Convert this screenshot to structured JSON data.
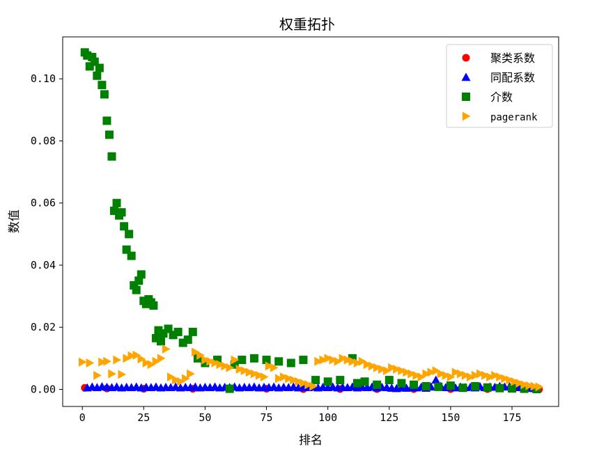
{
  "colors": {
    "clustering": "#ff0000",
    "assortativity": "#0000ff",
    "betweenness": "#008000",
    "pagerank": "#ffa500"
  },
  "chart_data": {
    "type": "scatter",
    "title": "权重拓扑",
    "xlabel": "排名",
    "ylabel": "数值",
    "xlim": [
      -8,
      194
    ],
    "ylim": [
      -0.0055,
      0.1135
    ],
    "xticks": [
      0,
      25,
      50,
      75,
      100,
      125,
      150,
      175
    ],
    "yticks": [
      0.0,
      0.02,
      0.04,
      0.06,
      0.08,
      0.1
    ],
    "ytick_labels": [
      "0.00",
      "0.02",
      "0.04",
      "0.06",
      "0.08",
      "0.10"
    ],
    "grid": false,
    "legend_position": "top-right",
    "series": [
      {
        "name": "聚类系数",
        "marker": "circle",
        "color_key": "clustering",
        "x": [
          1,
          10,
          25,
          45,
          60,
          75,
          90,
          105,
          120,
          135,
          150,
          165,
          180,
          186
        ],
        "y": [
          0.0005,
          0.0003,
          0.0002,
          0.0002,
          0.0002,
          0.0002,
          0.0001,
          0.0001,
          0.0001,
          0.0001,
          0.0001,
          0.0001,
          0.0001,
          0.0
        ]
      },
      {
        "name": "同配系数",
        "marker": "triangle",
        "color_key": "assortativity",
        "x": [
          2,
          4,
          6,
          8,
          10,
          12,
          14,
          16,
          18,
          20,
          22,
          24,
          26,
          28,
          30,
          32,
          34,
          36,
          38,
          40,
          42,
          44,
          46,
          48,
          50,
          52,
          54,
          56,
          58,
          60,
          62,
          64,
          66,
          68,
          70,
          72,
          74,
          76,
          78,
          80,
          82,
          84,
          86,
          88,
          90,
          92,
          94,
          96,
          98,
          100,
          102,
          104,
          106,
          108,
          110,
          112,
          114,
          116,
          118,
          120,
          122,
          124,
          126,
          128,
          130,
          132,
          134,
          136,
          138,
          140,
          142,
          144,
          146,
          148,
          150,
          152,
          154,
          156,
          158,
          160,
          162,
          164,
          166,
          168,
          170,
          172,
          174,
          176,
          178,
          180,
          182,
          184
        ],
        "y": [
          0.0005,
          0.0008,
          0.0006,
          0.0009,
          0.0007,
          0.0006,
          0.0008,
          0.0005,
          0.0007,
          0.0006,
          0.0008,
          0.0005,
          0.0007,
          0.0006,
          0.0008,
          0.0005,
          0.0007,
          0.0006,
          0.0008,
          0.0005,
          0.0007,
          0.0006,
          0.0008,
          0.0005,
          0.0007,
          0.0006,
          0.0008,
          0.0005,
          0.0007,
          0.0006,
          0.0008,
          0.0005,
          0.0007,
          0.0006,
          0.0008,
          0.0005,
          0.0007,
          0.0006,
          0.0008,
          0.0005,
          0.0007,
          0.0006,
          0.0008,
          0.0005,
          0.0007,
          0.0006,
          0.0008,
          0.0005,
          0.0007,
          0.0006,
          0.0008,
          0.0005,
          0.0007,
          0.0006,
          0.0008,
          0.0005,
          0.0007,
          0.0006,
          0.0008,
          0.0005,
          0.0007,
          0.0006,
          0.0004,
          0.0003,
          0.0005,
          0.0004,
          0.0006,
          0.0005,
          0.0007,
          0.0004,
          0.0008,
          0.003,
          0.001,
          0.0006,
          0.0009,
          0.0005,
          0.0008,
          0.0006,
          0.0007,
          0.0005,
          0.0009,
          0.0006,
          0.0008,
          0.0007,
          0.001,
          0.0008,
          0.0009,
          0.0007,
          0.0006,
          0.0005,
          0.0004,
          0.0003
        ]
      },
      {
        "name": "介数",
        "marker": "square",
        "color_key": "betweenness",
        "x": [
          1,
          2,
          3,
          4,
          5,
          6,
          7,
          8,
          9,
          10,
          11,
          12,
          13,
          14,
          15,
          16,
          17,
          18,
          19,
          20,
          21,
          22,
          23,
          24,
          25,
          26,
          27,
          28,
          29,
          30,
          31,
          32,
          33,
          35,
          37,
          39,
          41,
          43,
          45,
          47,
          50,
          55,
          60,
          62,
          65,
          70,
          75,
          80,
          85,
          90,
          95,
          100,
          105,
          110,
          112,
          115,
          120,
          125,
          130,
          135,
          140,
          145,
          150,
          155,
          160,
          165,
          170,
          175,
          180,
          185
        ],
        "y": [
          0.1085,
          0.1075,
          0.104,
          0.107,
          0.1055,
          0.101,
          0.1035,
          0.098,
          0.095,
          0.0865,
          0.082,
          0.075,
          0.0575,
          0.06,
          0.056,
          0.057,
          0.0525,
          0.045,
          0.05,
          0.043,
          0.0335,
          0.032,
          0.035,
          0.037,
          0.0285,
          0.0275,
          0.029,
          0.028,
          0.027,
          0.0165,
          0.019,
          0.0155,
          0.018,
          0.0195,
          0.0175,
          0.0185,
          0.015,
          0.016,
          0.0185,
          0.01,
          0.0085,
          0.0095,
          0.0002,
          0.008,
          0.0095,
          0.01,
          0.0095,
          0.009,
          0.0085,
          0.0095,
          0.003,
          0.0025,
          0.003,
          0.01,
          0.002,
          0.0025,
          0.0015,
          0.003,
          0.002,
          0.0015,
          0.001,
          0.0008,
          0.0012,
          0.0005,
          0.001,
          0.0006,
          0.0004,
          0.0003,
          0.0002,
          0.0001
        ]
      },
      {
        "name": "pagerank",
        "marker": "triangle-right",
        "color_key": "pagerank",
        "x": [
          0,
          3,
          6,
          8,
          10,
          12,
          14,
          16,
          18,
          20,
          22,
          24,
          26,
          28,
          30,
          32,
          34,
          36,
          38,
          40,
          42,
          44,
          46,
          48,
          50,
          52,
          54,
          56,
          58,
          60,
          62,
          64,
          66,
          68,
          70,
          72,
          74,
          76,
          78,
          80,
          82,
          84,
          86,
          88,
          90,
          92,
          94,
          96,
          98,
          100,
          102,
          104,
          106,
          108,
          110,
          112,
          114,
          116,
          118,
          120,
          122,
          124,
          126,
          128,
          130,
          132,
          134,
          136,
          138,
          140,
          142,
          144,
          146,
          148,
          150,
          152,
          154,
          156,
          158,
          160,
          162,
          164,
          166,
          168,
          170,
          172,
          174,
          176,
          178,
          180,
          182,
          184,
          186
        ],
        "y": [
          0.0088,
          0.0085,
          0.0045,
          0.0088,
          0.009,
          0.005,
          0.0095,
          0.0048,
          0.01,
          0.0108,
          0.011,
          0.0098,
          0.0085,
          0.008,
          0.009,
          0.01,
          0.013,
          0.004,
          0.003,
          0.0025,
          0.0035,
          0.005,
          0.012,
          0.011,
          0.0095,
          0.009,
          0.0085,
          0.008,
          0.0075,
          0.007,
          0.0095,
          0.0065,
          0.006,
          0.0055,
          0.005,
          0.0045,
          0.004,
          0.0075,
          0.007,
          0.0035,
          0.004,
          0.0035,
          0.003,
          0.0025,
          0.002,
          0.0015,
          0.001,
          0.009,
          0.0095,
          0.01,
          0.0095,
          0.009,
          0.01,
          0.0095,
          0.009,
          0.0085,
          0.009,
          0.008,
          0.0075,
          0.007,
          0.0065,
          0.006,
          0.007,
          0.0065,
          0.006,
          0.0055,
          0.005,
          0.0045,
          0.004,
          0.005,
          0.0055,
          0.006,
          0.005,
          0.0045,
          0.004,
          0.0055,
          0.005,
          0.0045,
          0.004,
          0.0045,
          0.005,
          0.0045,
          0.004,
          0.0045,
          0.004,
          0.0035,
          0.003,
          0.0025,
          0.002,
          0.0015,
          0.0012,
          0.001,
          0.0008
        ]
      }
    ]
  }
}
